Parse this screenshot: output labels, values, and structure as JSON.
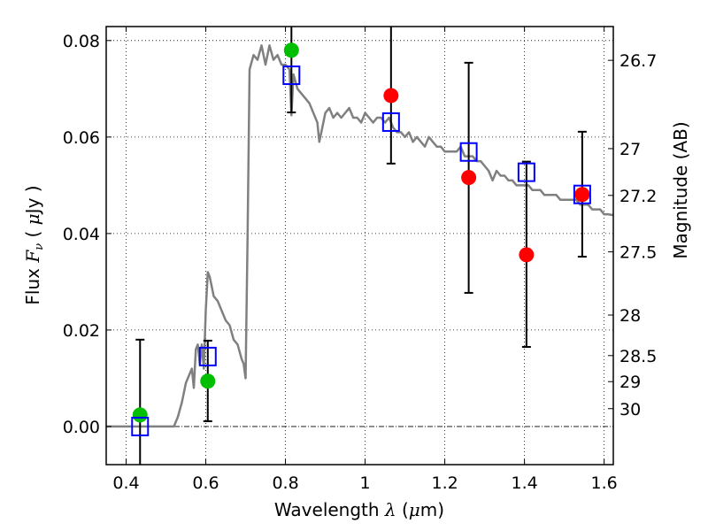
{
  "chart_data": {
    "type": "scatter",
    "title": "",
    "xlabel": "Wavelength  λ (μm)",
    "xlabel_parts": {
      "pre": "Wavelength  ",
      "lambda": "λ",
      "post_open": " (",
      "mu": "μ",
      "post": "m)"
    },
    "ylabel": "Flux  Fν  ( μJy )",
    "ylabel_parts": {
      "pre": "Flux  ",
      "F": "F",
      "nu": "ν",
      "mid": "  ( ",
      "mu": "μ",
      "post": "Jy )"
    },
    "y2label": "Magnitude (AB)",
    "xlim": [
      0.35,
      1.623
    ],
    "ylim": [
      -0.0079,
      0.0829
    ],
    "grid": true,
    "xticks": [
      0.4,
      0.6,
      0.8,
      1.0,
      1.2,
      1.4,
      1.6
    ],
    "xtick_labels": [
      "0.4",
      "0.6",
      "0.8",
      "1",
      "1.2",
      "1.4",
      "1.6"
    ],
    "yticks": [
      0.0,
      0.02,
      0.04,
      0.06,
      0.08
    ],
    "ytick_labels": [
      "0.00",
      "0.02",
      "0.04",
      "0.06",
      "0.08"
    ],
    "y2ticks": [
      {
        "label": "26.7",
        "flux": 0.0759
      },
      {
        "label": "27",
        "flux": 0.0576
      },
      {
        "label": "27.2",
        "flux": 0.0479
      },
      {
        "label": "27.5",
        "flux": 0.0362
      },
      {
        "label": "28",
        "flux": 0.0231
      },
      {
        "label": "28.5",
        "flux": 0.0147
      },
      {
        "label": "29",
        "flux": 0.0093
      },
      {
        "label": "30",
        "flux": 0.0037
      }
    ],
    "zero_line": 0.0,
    "colors": {
      "model": "#808080",
      "observed_green": "#00bf00",
      "observed_red": "#ff0000",
      "model_photometry": "#0000ff",
      "errorbar": "#000000"
    },
    "series": [
      {
        "name": "model-spectrum",
        "type": "line",
        "x": [
          0.35,
          0.52,
          0.53,
          0.54,
          0.55,
          0.56,
          0.565,
          0.57,
          0.575,
          0.58,
          0.585,
          0.59,
          0.595,
          0.6,
          0.605,
          0.61,
          0.62,
          0.63,
          0.64,
          0.65,
          0.66,
          0.67,
          0.68,
          0.69,
          0.695,
          0.7,
          0.705,
          0.71,
          0.72,
          0.73,
          0.74,
          0.75,
          0.76,
          0.77,
          0.78,
          0.79,
          0.8,
          0.81,
          0.815,
          0.82,
          0.83,
          0.84,
          0.85,
          0.86,
          0.87,
          0.88,
          0.885,
          0.89,
          0.9,
          0.91,
          0.92,
          0.93,
          0.94,
          0.95,
          0.96,
          0.97,
          0.98,
          0.99,
          1.0,
          1.01,
          1.02,
          1.03,
          1.04,
          1.05,
          1.06,
          1.07,
          1.08,
          1.09,
          1.1,
          1.11,
          1.12,
          1.13,
          1.14,
          1.15,
          1.16,
          1.17,
          1.18,
          1.19,
          1.2,
          1.21,
          1.22,
          1.23,
          1.24,
          1.25,
          1.26,
          1.27,
          1.28,
          1.29,
          1.3,
          1.31,
          1.32,
          1.33,
          1.34,
          1.35,
          1.36,
          1.37,
          1.38,
          1.39,
          1.4,
          1.41,
          1.42,
          1.43,
          1.44,
          1.45,
          1.46,
          1.47,
          1.48,
          1.49,
          1.5,
          1.51,
          1.52,
          1.53,
          1.54,
          1.55,
          1.56,
          1.57,
          1.58,
          1.59,
          1.6,
          1.61,
          1.623
        ],
        "y": [
          0.0,
          0.0,
          0.002,
          0.005,
          0.009,
          0.011,
          0.012,
          0.008,
          0.016,
          0.017,
          0.013,
          0.017,
          0.012,
          0.024,
          0.032,
          0.031,
          0.027,
          0.026,
          0.024,
          0.022,
          0.021,
          0.018,
          0.017,
          0.014,
          0.013,
          0.01,
          0.04,
          0.074,
          0.077,
          0.076,
          0.079,
          0.075,
          0.079,
          0.076,
          0.077,
          0.075,
          0.075,
          0.074,
          0.0645,
          0.073,
          0.07,
          0.069,
          0.068,
          0.067,
          0.065,
          0.063,
          0.059,
          0.061,
          0.065,
          0.066,
          0.064,
          0.065,
          0.064,
          0.065,
          0.066,
          0.064,
          0.064,
          0.063,
          0.065,
          0.064,
          0.063,
          0.064,
          0.064,
          0.063,
          0.064,
          0.062,
          0.061,
          0.061,
          0.06,
          0.061,
          0.059,
          0.06,
          0.059,
          0.058,
          0.06,
          0.059,
          0.058,
          0.058,
          0.057,
          0.057,
          0.057,
          0.057,
          0.058,
          0.056,
          0.056,
          0.056,
          0.055,
          0.055,
          0.054,
          0.053,
          0.051,
          0.053,
          0.052,
          0.052,
          0.051,
          0.051,
          0.05,
          0.05,
          0.05,
          0.05,
          0.049,
          0.049,
          0.049,
          0.048,
          0.048,
          0.048,
          0.048,
          0.047,
          0.047,
          0.047,
          0.047,
          0.047,
          0.046,
          0.046,
          0.046,
          0.045,
          0.045,
          0.045,
          0.044,
          0.044,
          0.0438
        ]
      },
      {
        "name": "errorbars",
        "type": "errorbar",
        "x": [
          0.435,
          0.605,
          0.815,
          1.065,
          1.26,
          1.405,
          1.545
        ],
        "low": [
          -0.0079,
          0.0011,
          0.0651,
          0.0545,
          0.0277,
          0.0165,
          0.0352
        ],
        "high": [
          0.018,
          0.0178,
          0.0829,
          0.0829,
          0.0754,
          0.0549,
          0.0611
        ],
        "low_cap": [
          false,
          true,
          true,
          true,
          true,
          true,
          true
        ],
        "high_cap": [
          true,
          true,
          false,
          false,
          true,
          true,
          true
        ]
      },
      {
        "name": "model-photometry",
        "type": "scatter",
        "marker": "open-square",
        "x": [
          0.435,
          0.605,
          0.815,
          1.065,
          1.26,
          1.405,
          1.545
        ],
        "y": [
          0.0,
          0.0145,
          0.0728,
          0.0631,
          0.0569,
          0.0527,
          0.0481
        ]
      },
      {
        "name": "observed-green",
        "type": "scatter",
        "marker": "filled-circle",
        "x": [
          0.435,
          0.605,
          0.815
        ],
        "y": [
          0.0024,
          0.0094,
          0.078
        ]
      },
      {
        "name": "observed-red",
        "type": "scatter",
        "marker": "filled-circle",
        "x": [
          1.065,
          1.26,
          1.405,
          1.545
        ],
        "y": [
          0.0686,
          0.0516,
          0.0356,
          0.0481
        ]
      }
    ]
  }
}
